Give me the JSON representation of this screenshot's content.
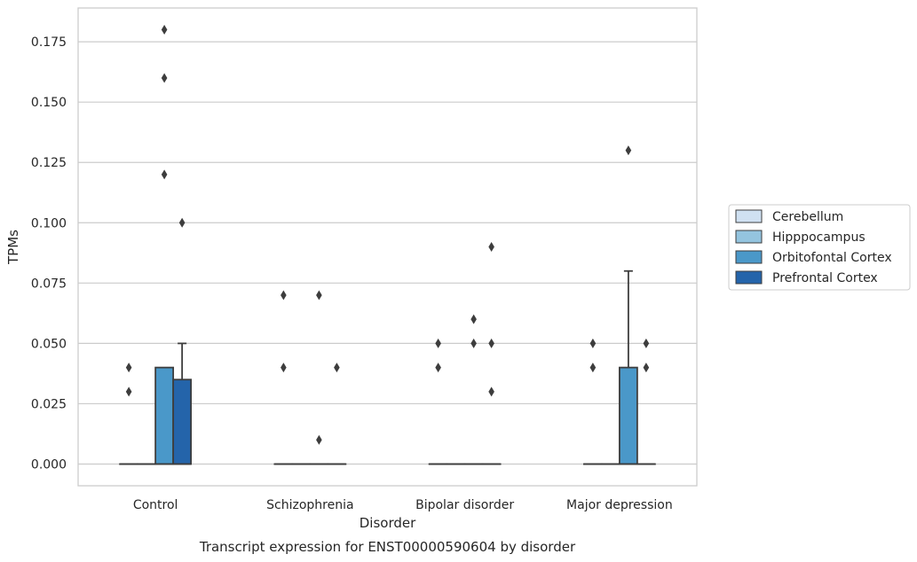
{
  "chart_data": {
    "type": "box",
    "title": "Transcript expression for ENST00000590604 by disorder",
    "xlabel": "Disorder",
    "ylabel": "TPMs",
    "ylim": [
      -0.009,
      0.189
    ],
    "yticks": [
      "0.000",
      "0.025",
      "0.050",
      "0.075",
      "0.100",
      "0.125",
      "0.150",
      "0.175"
    ],
    "categories": [
      "Control",
      "Schizophrenia",
      "Bipolar disorder",
      "Major depression"
    ],
    "grid": "horizontal",
    "legend_position": "right",
    "series": [
      {
        "name": "Cerebellum",
        "color": "#d0e1f2",
        "boxes": [
          {
            "q1": 0,
            "median": 0,
            "q3": 0,
            "whisker_low": 0,
            "whisker_high": 0,
            "outliers": [
              0.03,
              0.04
            ]
          },
          {
            "q1": 0,
            "median": 0,
            "q3": 0,
            "whisker_low": 0,
            "whisker_high": 0,
            "outliers": [
              0.04,
              0.07
            ]
          },
          {
            "q1": 0,
            "median": 0,
            "q3": 0,
            "whisker_low": 0,
            "whisker_high": 0,
            "outliers": [
              0.04,
              0.05
            ]
          },
          {
            "q1": 0,
            "median": 0,
            "q3": 0,
            "whisker_low": 0,
            "whisker_high": 0,
            "outliers": [
              0.04,
              0.05
            ]
          }
        ]
      },
      {
        "name": "Hipppocampus",
        "color": "#94c4df",
        "boxes": [
          {
            "q1": 0,
            "median": 0,
            "q3": 0,
            "whisker_low": 0,
            "whisker_high": 0,
            "outliers": []
          },
          {
            "q1": 0,
            "median": 0,
            "q3": 0,
            "whisker_low": 0,
            "whisker_high": 0,
            "outliers": []
          },
          {
            "q1": 0,
            "median": 0,
            "q3": 0,
            "whisker_low": 0,
            "whisker_high": 0,
            "outliers": []
          },
          {
            "q1": 0,
            "median": 0,
            "q3": 0,
            "whisker_low": 0,
            "whisker_high": 0,
            "outliers": []
          }
        ]
      },
      {
        "name": "Orbitofontal Cortex",
        "color": "#4a98c9",
        "boxes": [
          {
            "q1": 0,
            "median": 0,
            "q3": 0.04,
            "whisker_low": 0,
            "whisker_high": 0.04,
            "outliers": [
              0.12,
              0.16,
              0.18
            ]
          },
          {
            "q1": 0,
            "median": 0,
            "q3": 0,
            "whisker_low": 0,
            "whisker_high": 0,
            "outliers": [
              0.01,
              0.07
            ]
          },
          {
            "q1": 0,
            "median": 0,
            "q3": 0,
            "whisker_low": 0,
            "whisker_high": 0,
            "outliers": [
              0.05,
              0.06
            ]
          },
          {
            "q1": 0,
            "median": 0,
            "q3": 0.04,
            "whisker_low": 0,
            "whisker_high": 0.08,
            "outliers": [
              0.13
            ]
          }
        ]
      },
      {
        "name": "Prefrontal Cortex",
        "color": "#2464aa",
        "boxes": [
          {
            "q1": 0,
            "median": 0,
            "q3": 0.035,
            "whisker_low": 0,
            "whisker_high": 0.05,
            "outliers": [
              0.1
            ]
          },
          {
            "q1": 0,
            "median": 0,
            "q3": 0,
            "whisker_low": 0,
            "whisker_high": 0,
            "outliers": [
              0.04
            ]
          },
          {
            "q1": 0,
            "median": 0,
            "q3": 0,
            "whisker_low": 0,
            "whisker_high": 0,
            "outliers": [
              0.03,
              0.05,
              0.09
            ]
          },
          {
            "q1": 0,
            "median": 0,
            "q3": 0,
            "whisker_low": 0,
            "whisker_high": 0,
            "outliers": [
              0.04,
              0.05
            ]
          }
        ]
      }
    ]
  }
}
